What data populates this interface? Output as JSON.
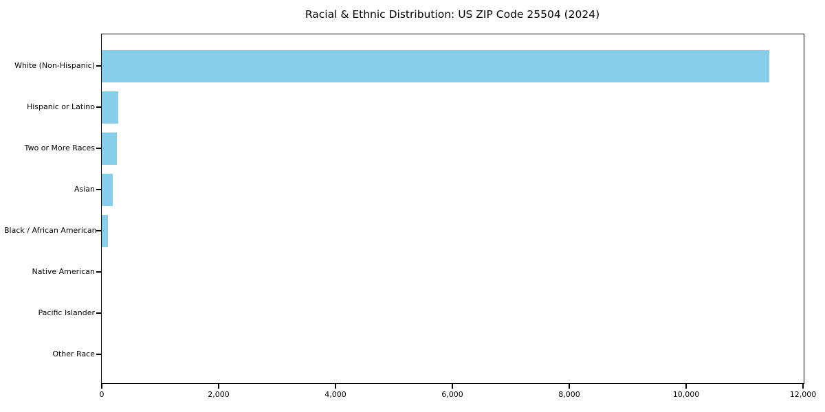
{
  "title": "Racial & Ethnic Distribution: US ZIP Code 25504 (2024)",
  "colors": {
    "bar": "#87CEEB",
    "axis": "#000000",
    "text": "#000000",
    "background": "#FFFFFF"
  },
  "chart_data": {
    "type": "bar",
    "orientation": "horizontal",
    "title": "Racial & Ethnic Distribution: US ZIP Code 25504 (2024)",
    "categories": [
      "White (Non-Hispanic)",
      "Hispanic or Latino",
      "Two or More Races",
      "Asian",
      "Black / African American",
      "Native American",
      "Pacific Islander",
      "Other Race"
    ],
    "values": [
      11425,
      280,
      260,
      185,
      110,
      0,
      0,
      0
    ],
    "xlabel": "",
    "ylabel": "",
    "xlim": [
      0,
      12000
    ],
    "xticks": [
      0,
      2000,
      4000,
      6000,
      8000,
      10000,
      12000
    ],
    "xtick_labels": [
      "0",
      "2,000",
      "4,000",
      "6,000",
      "8,000",
      "10,000",
      "12,000"
    ],
    "grid": false,
    "legend": false,
    "bar_color": "#87CEEB"
  }
}
